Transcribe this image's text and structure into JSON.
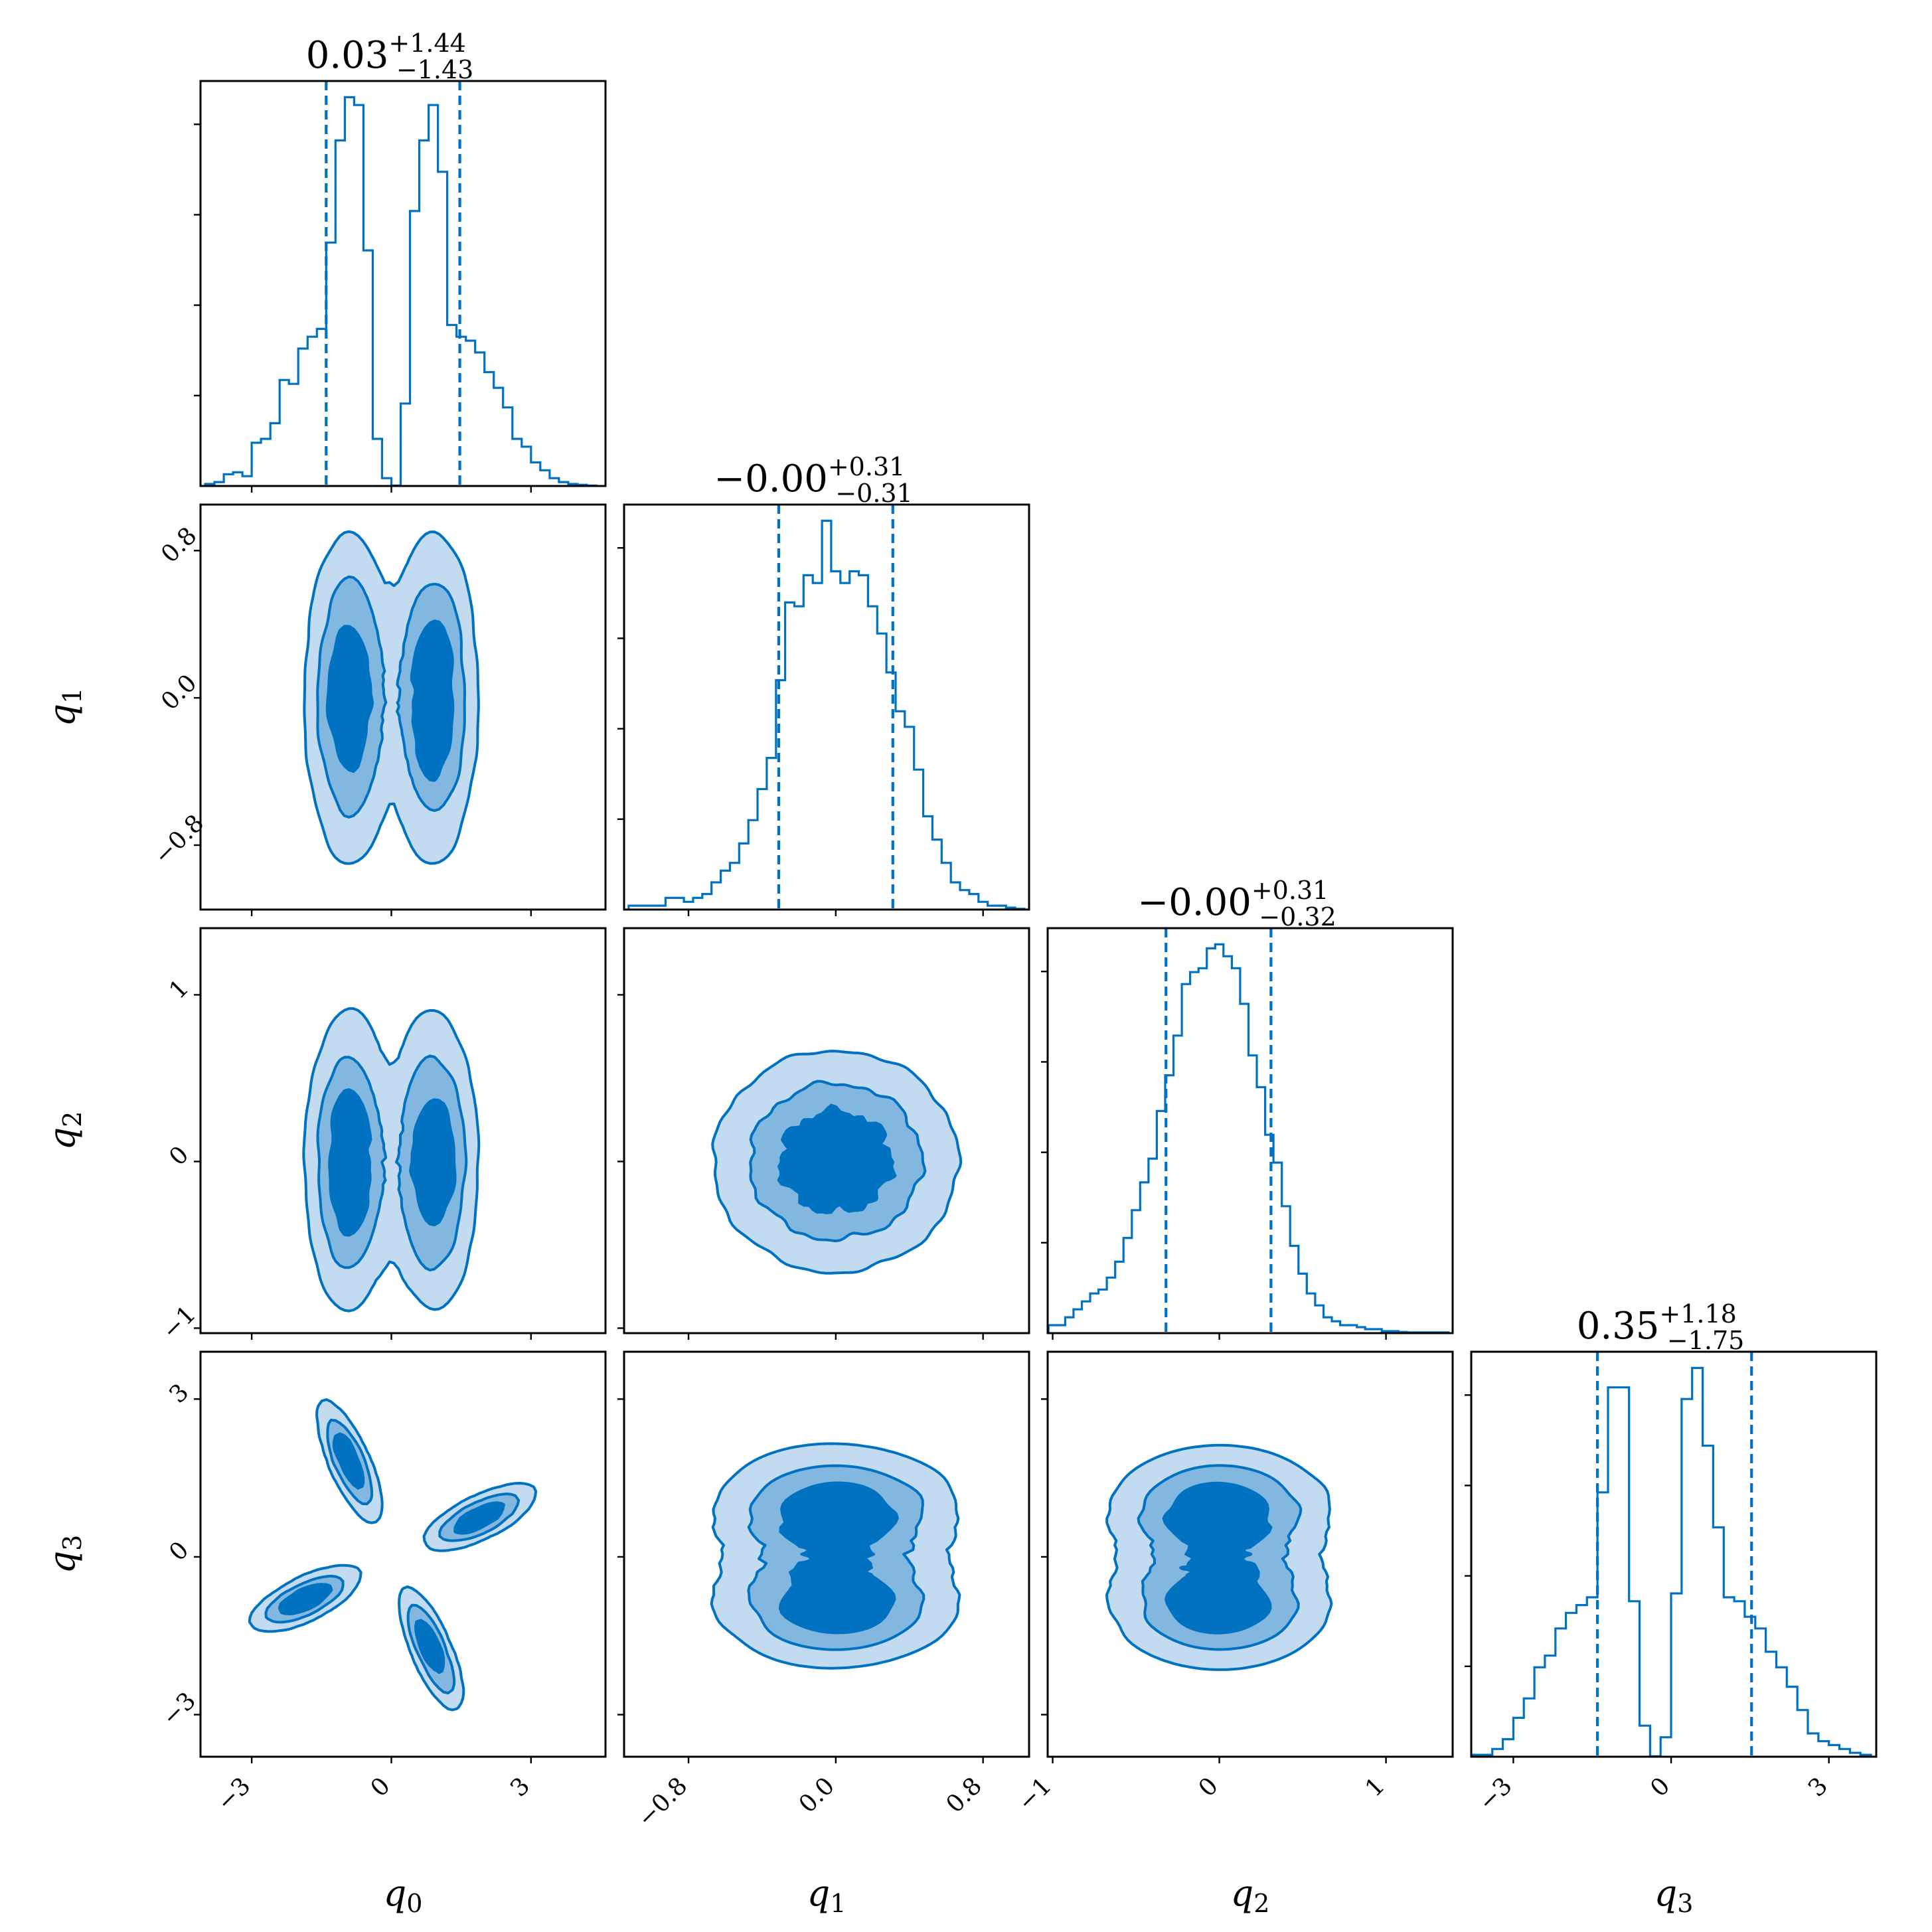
{
  "chart_data": {
    "type": "corner",
    "color": "#0072c1",
    "contour_fills": [
      "#c2dbf0",
      "#82b7e0",
      "#0072c1"
    ],
    "parameters": [
      {
        "label": "q",
        "sub": "0",
        "range": [
          -4.1,
          4.6
        ],
        "ticks": [
          -3,
          0,
          3
        ]
      },
      {
        "label": "q",
        "sub": "1",
        "range": [
          -1.15,
          1.05
        ],
        "ticks": [
          -0.8,
          0.0,
          0.8
        ]
      },
      {
        "label": "q",
        "sub": "2",
        "range": [
          -1.03,
          1.4
        ],
        "ticks": [
          -1,
          0,
          1
        ]
      },
      {
        "label": "q",
        "sub": "3",
        "range": [
          -3.8,
          3.9
        ],
        "ticks": [
          -3,
          0,
          3
        ]
      }
    ],
    "axis_tick_labels": {
      "q0": [
        "−3",
        "0",
        "3"
      ],
      "q1": [
        "−0.8",
        "0.0",
        "0.8"
      ],
      "q2": [
        "−1",
        "0",
        "1"
      ],
      "q3": [
        "−3",
        "0",
        "3"
      ]
    },
    "titles": [
      {
        "median": "0.03",
        "plus": "+1.44",
        "minus": "−1.43"
      },
      {
        "median": "−0.00",
        "plus": "+0.31",
        "minus": "−0.31"
      },
      {
        "median": "−0.00",
        "plus": "+0.31",
        "minus": "−0.32"
      },
      {
        "median": "0.35",
        "plus": "+1.18",
        "minus": "−1.75"
      }
    ],
    "quantiles": [
      [
        -1.4,
        1.47
      ],
      [
        -0.31,
        0.31
      ],
      [
        -0.32,
        0.31
      ],
      [
        -1.4,
        1.53
      ]
    ],
    "histograms": [
      {
        "x": [
          -3.9,
          -3.7,
          -3.5,
          -3.3,
          -3.1,
          -2.9,
          -2.7,
          -2.5,
          -2.3,
          -2.1,
          -1.9,
          -1.7,
          -1.5,
          -1.3,
          -1.1,
          -0.9,
          -0.7,
          -0.5,
          -0.3,
          -0.1,
          0.1,
          0.3,
          0.5,
          0.7,
          0.9,
          1.1,
          1.3,
          1.5,
          1.7,
          1.9,
          2.1,
          2.3,
          2.5,
          2.7,
          2.9,
          3.1,
          3.3,
          3.5,
          3.7,
          3.9,
          4.1,
          4.3
        ],
        "y": [
          0.005,
          0.01,
          0.03,
          0.035,
          0.025,
          0.11,
          0.12,
          0.16,
          0.27,
          0.26,
          0.35,
          0.38,
          0.4,
          0.62,
          0.88,
          0.99,
          0.97,
          0.6,
          0.12,
          0.02,
          0.001,
          0.21,
          0.7,
          0.88,
          0.97,
          0.8,
          0.41,
          0.38,
          0.37,
          0.34,
          0.29,
          0.25,
          0.2,
          0.12,
          0.1,
          0.06,
          0.04,
          0.02,
          0.01,
          0.005,
          0.003,
          0.001
        ]
      },
      {
        "x": [
          -1.1,
          -1.05,
          -1.0,
          -0.95,
          -0.9,
          -0.85,
          -0.8,
          -0.75,
          -0.7,
          -0.65,
          -0.6,
          -0.55,
          -0.5,
          -0.45,
          -0.4,
          -0.35,
          -0.3,
          -0.25,
          -0.2,
          -0.15,
          -0.1,
          -0.05,
          0.0,
          0.05,
          0.1,
          0.15,
          0.2,
          0.25,
          0.3,
          0.35,
          0.4,
          0.45,
          0.5,
          0.55,
          0.6,
          0.65,
          0.7,
          0.75,
          0.8,
          0.85,
          0.9,
          0.95,
          1.0
        ],
        "y": [
          0.01,
          0.01,
          0.01,
          0.01,
          0.03,
          0.03,
          0.02,
          0.03,
          0.04,
          0.07,
          0.1,
          0.12,
          0.17,
          0.23,
          0.31,
          0.39,
          0.59,
          0.79,
          0.78,
          0.86,
          0.84,
          1.0,
          0.87,
          0.84,
          0.87,
          0.86,
          0.78,
          0.71,
          0.61,
          0.51,
          0.47,
          0.36,
          0.24,
          0.18,
          0.12,
          0.07,
          0.05,
          0.04,
          0.02,
          0.01,
          0.01,
          0.005,
          0.002
        ]
      },
      {
        "x": [
          -1.0,
          -0.95,
          -0.9,
          -0.85,
          -0.8,
          -0.75,
          -0.7,
          -0.65,
          -0.6,
          -0.55,
          -0.5,
          -0.45,
          -0.4,
          -0.35,
          -0.3,
          -0.25,
          -0.2,
          -0.15,
          -0.1,
          -0.05,
          0.0,
          0.05,
          0.1,
          0.15,
          0.2,
          0.25,
          0.3,
          0.35,
          0.4,
          0.45,
          0.5,
          0.55,
          0.6,
          0.65,
          0.7,
          0.75,
          0.8,
          0.85,
          0.9,
          0.95,
          1.0,
          1.05,
          1.1,
          1.15,
          1.2,
          1.25,
          1.3,
          1.35
        ],
        "y": [
          0.02,
          0.02,
          0.04,
          0.06,
          0.08,
          0.1,
          0.11,
          0.14,
          0.18,
          0.24,
          0.31,
          0.38,
          0.44,
          0.56,
          0.65,
          0.75,
          0.88,
          0.91,
          0.92,
          0.97,
          0.98,
          0.95,
          0.92,
          0.83,
          0.7,
          0.62,
          0.5,
          0.43,
          0.32,
          0.22,
          0.15,
          0.1,
          0.07,
          0.04,
          0.03,
          0.02,
          0.02,
          0.015,
          0.01,
          0.01,
          0.005,
          0.005,
          0.003,
          0.002,
          0.002,
          0.002,
          0.002,
          0.002
        ]
      },
      {
        "x": [
          -3.7,
          -3.5,
          -3.3,
          -3.1,
          -2.9,
          -2.7,
          -2.5,
          -2.3,
          -2.1,
          -1.9,
          -1.7,
          -1.5,
          -1.3,
          -1.1,
          -0.9,
          -0.7,
          -0.5,
          -0.3,
          -0.1,
          0.1,
          0.3,
          0.5,
          0.7,
          0.9,
          1.1,
          1.3,
          1.5,
          1.7,
          1.9,
          2.1,
          2.3,
          2.5,
          2.7,
          2.9,
          3.1,
          3.3,
          3.5,
          3.7
        ],
        "y": [
          0.005,
          0.005,
          0.02,
          0.045,
          0.1,
          0.15,
          0.23,
          0.26,
          0.33,
          0.37,
          0.39,
          0.41,
          0.68,
          0.95,
          0.95,
          0.4,
          0.08,
          0.001,
          0.05,
          0.42,
          0.92,
          1.0,
          0.8,
          0.59,
          0.41,
          0.4,
          0.36,
          0.33,
          0.27,
          0.23,
          0.18,
          0.12,
          0.06,
          0.04,
          0.03,
          0.02,
          0.01,
          0.005
        ]
      }
    ],
    "pairs": [
      {
        "x": "q0",
        "y": "q1",
        "shape": "bimodal-x",
        "centers": [
          [
            -0.9,
            0.0
          ],
          [
            0.9,
            0.0
          ]
        ],
        "sd": [
          0.45,
          0.42
        ]
      },
      {
        "x": "q0",
        "y": "q2",
        "shape": "bimodal-x",
        "centers": [
          [
            -0.9,
            0.0
          ],
          [
            0.9,
            0.0
          ]
        ],
        "sd": [
          0.45,
          0.42
        ]
      },
      {
        "x": "q1",
        "y": "q2",
        "shape": "gaussian",
        "centers": [
          [
            0.0,
            0.0
          ]
        ],
        "sd": [
          0.31,
          0.31
        ]
      },
      {
        "x": "q0",
        "y": "q3",
        "shape": "cross",
        "centers": [
          [
            -0.9,
            1.8
          ],
          [
            1.9,
            0.75
          ],
          [
            -1.85,
            -0.8
          ],
          [
            0.85,
            -1.75
          ]
        ],
        "sd": [
          0.6,
          0.2
        ]
      },
      {
        "x": "q1",
        "y": "q3",
        "shape": "bimodal-y",
        "centers": [
          [
            0.0,
            0.85
          ],
          [
            0.0,
            -0.85
          ]
        ],
        "sd": [
          0.31,
          0.6
        ]
      },
      {
        "x": "q2",
        "y": "q3",
        "shape": "bimodal-y",
        "centers": [
          [
            0.0,
            0.85
          ],
          [
            0.0,
            -0.85
          ]
        ],
        "sd": [
          0.31,
          0.6
        ]
      }
    ]
  }
}
